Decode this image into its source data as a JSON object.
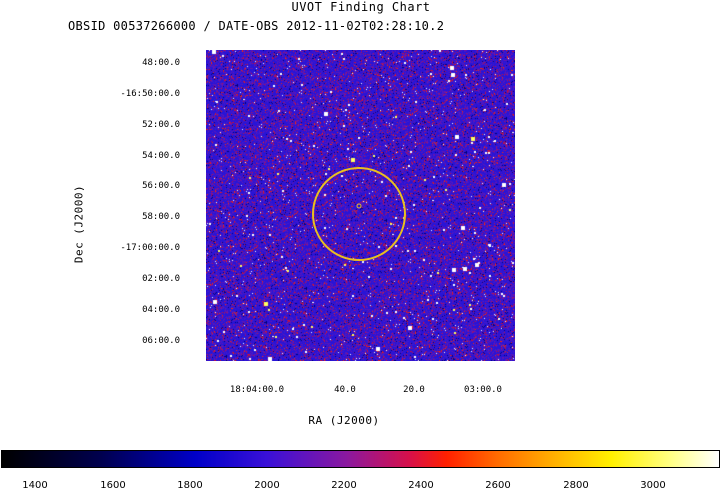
{
  "title": "UVOT Finding Chart",
  "subtitle": "OBSID 00537266000 / DATE-OBS 2012-11-02T02:28:10.2",
  "axes": {
    "xlabel": "RA (J2000)",
    "ylabel": "Dec (J2000)",
    "y_ticks": [
      "48:00.0",
      "-16:50:00.0",
      "52:00.0",
      "54:00.0",
      "56:00.0",
      "58:00.0",
      "-17:00:00.0",
      "02:00.0",
      "04:00.0",
      "06:00.0"
    ],
    "x_ticks": [
      "18:04:00.0",
      "40.0",
      "20.0",
      "03:00.0"
    ]
  },
  "colorbar": {
    "ticks": [
      "1400",
      "1600",
      "1800",
      "2000",
      "2200",
      "2400",
      "2600",
      "2800",
      "3000"
    ]
  },
  "overlay": {
    "region_shape": "circle",
    "region_color": "#e8c020"
  }
}
